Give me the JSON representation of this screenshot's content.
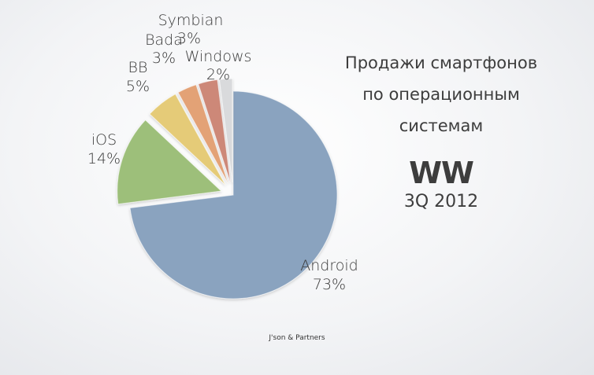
{
  "chart_data": {
    "type": "pie",
    "title_lines": [
      "Продажи смартфонов",
      "по операционным",
      "системам"
    ],
    "subtitle_region": "WW",
    "subtitle_period": "3Q 2012",
    "source": "J'son & Partners",
    "slices": [
      {
        "name": "Android",
        "value": 73,
        "label": "73%",
        "color": "#8aa3bf",
        "exploded": false
      },
      {
        "name": "iOS",
        "value": 14,
        "label": "14%",
        "color": "#9dbf7a",
        "exploded": true
      },
      {
        "name": "BB",
        "value": 5,
        "label": "5%",
        "color": "#e5cb78",
        "exploded": true
      },
      {
        "name": "Bada",
        "value": 3,
        "label": "3%",
        "color": "#e3a276",
        "exploded": true
      },
      {
        "name": "Symbian",
        "value": 3,
        "label": "3%",
        "color": "#cd8878",
        "exploded": true
      },
      {
        "name": "Windows",
        "value": 2,
        "label": "2%",
        "color": "#d9dadc",
        "exploded": true
      }
    ]
  }
}
